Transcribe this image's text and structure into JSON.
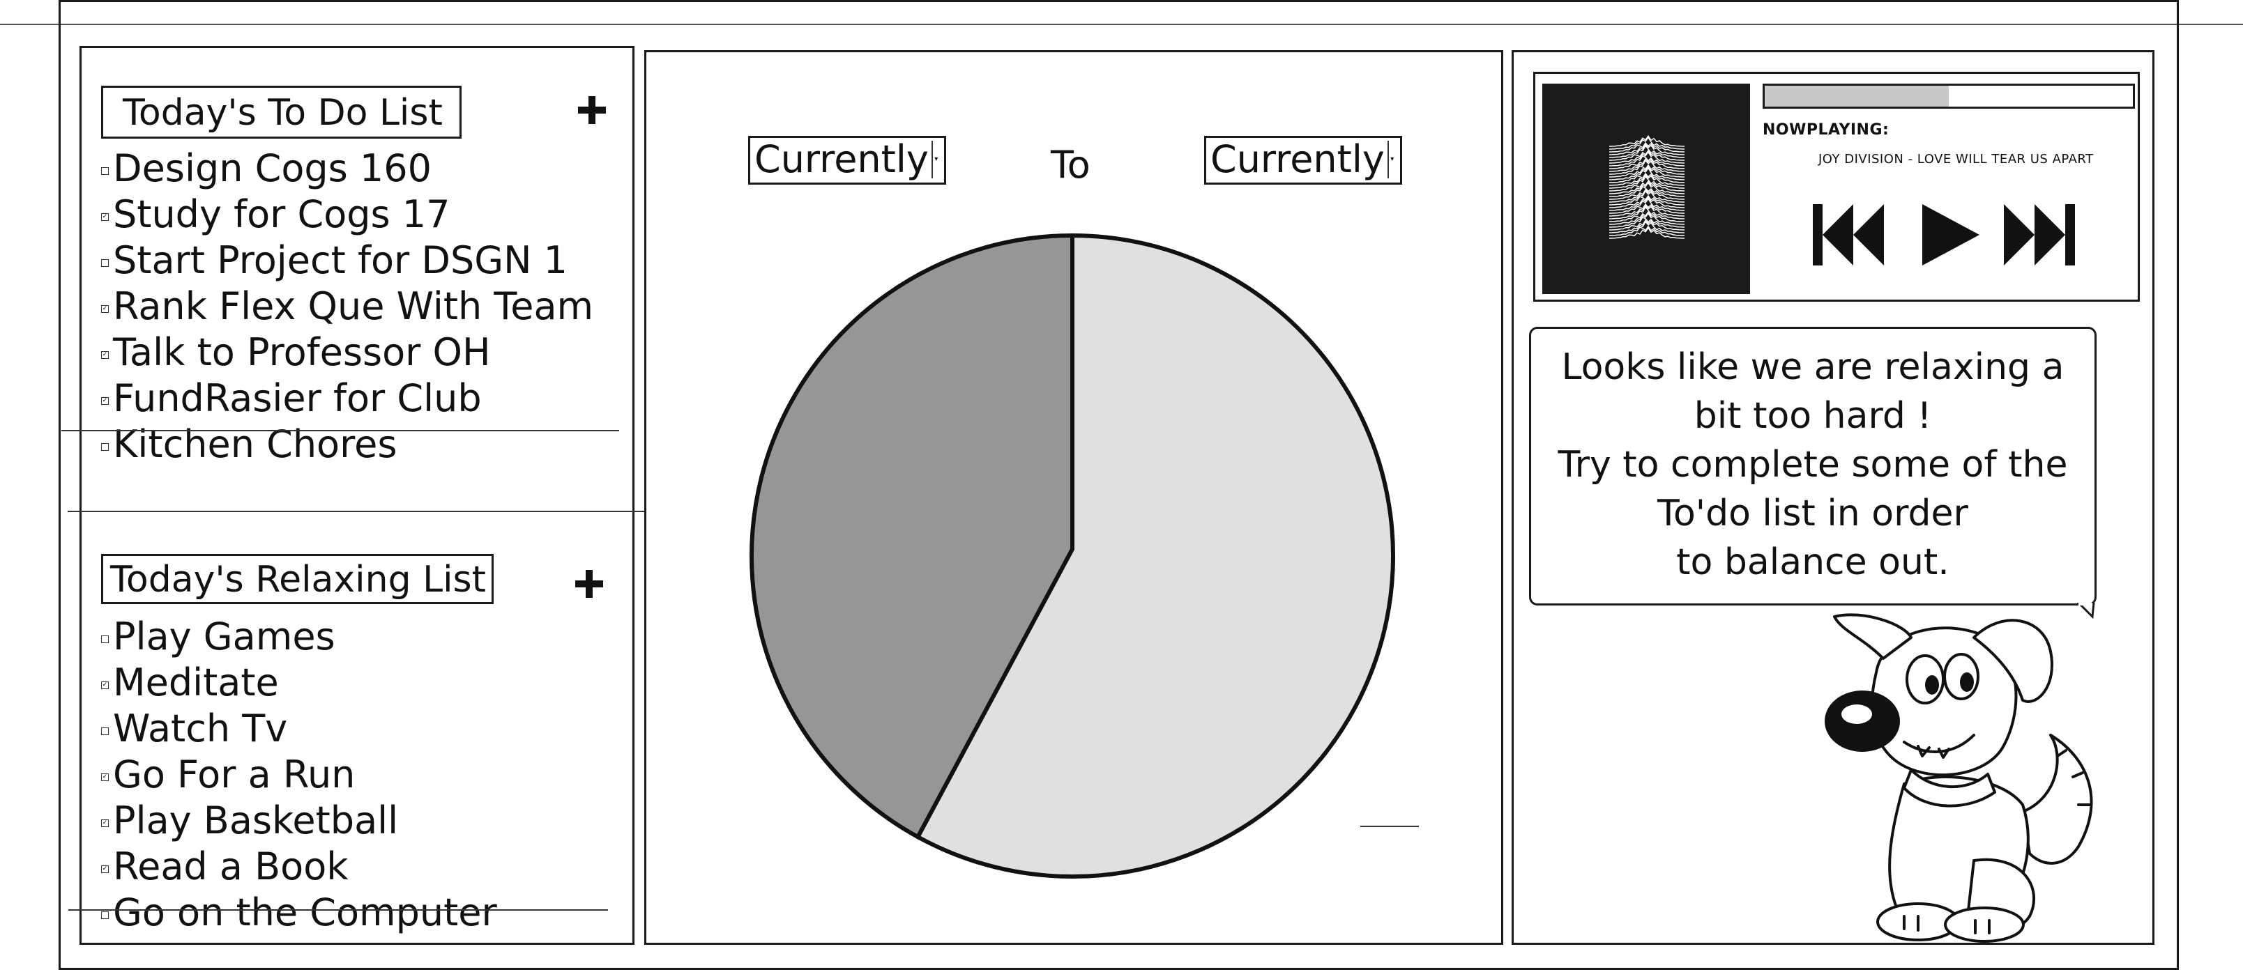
{
  "todo": {
    "title": "Today's To Do List",
    "add_icon": "plus-icon",
    "items": [
      {
        "label": "Design Cogs 160",
        "checked": false
      },
      {
        "label": "Study for Cogs 17",
        "checked": true
      },
      {
        "label": "Start Project for DSGN 1",
        "checked": false
      },
      {
        "label": "Rank Flex Que With Team",
        "checked": true
      },
      {
        "label": "Talk to Professor OH",
        "checked": true
      },
      {
        "label": "FundRasier for Club",
        "checked": true
      },
      {
        "label": "Kitchen Chores",
        "checked": false
      }
    ]
  },
  "relax": {
    "title": "Today's Relaxing List",
    "add_icon": "plus-icon",
    "items": [
      {
        "label": "Play Games",
        "checked": false
      },
      {
        "label": "Meditate",
        "checked": true
      },
      {
        "label": "Watch Tv",
        "checked": false
      },
      {
        "label": "Go For a Run",
        "checked": true
      },
      {
        "label": "Play Basketball",
        "checked": true
      },
      {
        "label": "Read a Book",
        "checked": true
      },
      {
        "label": "Go on the Computer",
        "checked": false
      }
    ]
  },
  "range": {
    "from_value": "Currently",
    "to_label": "To",
    "to_value": "Currently"
  },
  "chart_data": {
    "type": "pie",
    "slices": [
      {
        "value": 58,
        "color": "#e0e0e0"
      },
      {
        "value": 42,
        "color": "#969696"
      }
    ]
  },
  "player": {
    "now_playing_label": "NOWPLAYING:",
    "track": "JOY DIVISION - LOVE WILL TEAR US APART",
    "progress": 0.5,
    "controls": {
      "prev_icon": "skip-back-icon",
      "play_icon": "play-icon",
      "next_icon": "skip-forward-icon"
    }
  },
  "message": {
    "lines": [
      "Looks like we are relaxing a",
      "bit too hard !",
      "Try to complete some of the",
      "To'do list in order",
      "to balance out."
    ]
  },
  "mascot": {
    "icon": "puppy-mascot-icon"
  }
}
